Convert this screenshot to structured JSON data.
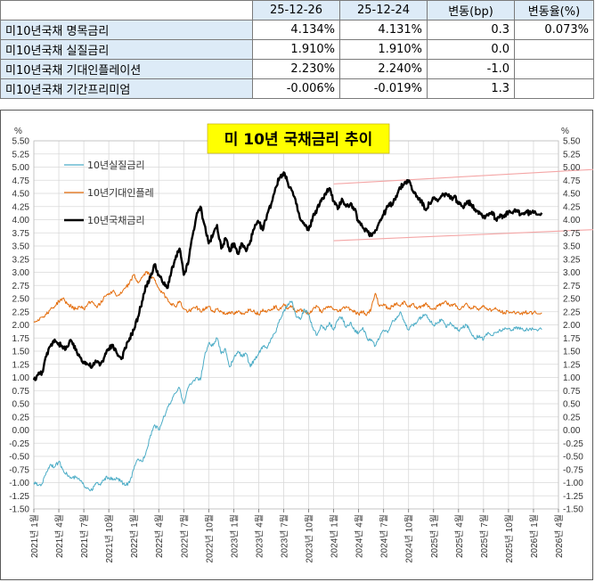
{
  "table": {
    "headers": [
      "",
      "25-12-26",
      "25-12-24",
      "변동(bp)",
      "변동율(%)"
    ],
    "rows": [
      {
        "label": "미10년국채 명목금리",
        "v1": "4.134%",
        "v2": "4.131%",
        "chg": "0.3",
        "pct": "0.073%"
      },
      {
        "label": "미10년국채 실질금리",
        "v1": "1.910%",
        "v2": "1.910%",
        "chg": "0.0",
        "pct": ""
      },
      {
        "label": "미10년국채 기대인플레이션",
        "v1": "2.230%",
        "v2": "2.240%",
        "chg": "-1.0",
        "pct": ""
      },
      {
        "label": "미10년국채 기간프리미엄",
        "v1": "-0.006%",
        "v2": "-0.019%",
        "chg": "1.3",
        "pct": ""
      }
    ]
  },
  "chart_data": {
    "type": "line",
    "title": "미 10년  국채금리  추이",
    "y_unit_label": "%",
    "ylim": [
      -1.5,
      5.5
    ],
    "ytick_step": 0.25,
    "x_ticks": [
      "2021년 1월",
      "2021년 4월",
      "2021년 7월",
      "2021년 10월",
      "2022년 1월",
      "2022년 4월",
      "2022년 7월",
      "2022년 10월",
      "2023년 1월",
      "2023년 4월",
      "2023년 7월",
      "2023년 10월",
      "2024년 1월",
      "2024년 4월",
      "2024년 7월",
      "2024년 10월",
      "2025년 1월",
      "2025년 4월",
      "2025년 7월",
      "2025년 10월",
      "2026년 1월",
      "2026년 4월"
    ],
    "grid": true,
    "legend_position": "top-left",
    "colors": {
      "real": "#4bacc6",
      "breakeven": "#e46c0a",
      "nominal": "#000000",
      "band": "#f4a6a6",
      "title_bg": "#ffff00"
    },
    "series": [
      {
        "key": "real",
        "name": "10년실질금리",
        "x": [
          0,
          0.5,
          1,
          1.5,
          2,
          2.5,
          3,
          3.5,
          4,
          4.5,
          5,
          5.5,
          6,
          6.5,
          7,
          7.5,
          8,
          8.5,
          9,
          9.5,
          10,
          10.5,
          11,
          11.5,
          12,
          12.5,
          13,
          13.5,
          14,
          14.5,
          15,
          15.5,
          16,
          16.5,
          17,
          17.5,
          18,
          18.5,
          19,
          19.5,
          20,
          20.5,
          21,
          21.5,
          22,
          22.5,
          23,
          23.5,
          24,
          24.5,
          25,
          25.5,
          26,
          26.5,
          27,
          27.5,
          28,
          28.5,
          29,
          29.5,
          30,
          30.5,
          31,
          31.5,
          32,
          32.5,
          33,
          33.5,
          34,
          34.5,
          35,
          35.5,
          36,
          36.5,
          37,
          37.5,
          38,
          38.5,
          39,
          39.5,
          40,
          40.5,
          41,
          41.5,
          42,
          42.5,
          43,
          43.5,
          44,
          44.5,
          45,
          45.5,
          46,
          46.5,
          47,
          47.5,
          48,
          48.5,
          49,
          49.5,
          50,
          50.5,
          51,
          51.5,
          52,
          52.5,
          53,
          53.5,
          54,
          54.5,
          55,
          55.5,
          56,
          56.5,
          57,
          57.5,
          58,
          58.5,
          59,
          59.5,
          60,
          61
        ],
        "values": [
          -1.0,
          -1.05,
          -1.02,
          -0.8,
          -0.65,
          -0.7,
          -0.6,
          -0.75,
          -0.85,
          -0.92,
          -0.9,
          -0.95,
          -1.05,
          -1.1,
          -1.15,
          -1.0,
          -1.05,
          -0.92,
          -0.9,
          -0.95,
          -0.92,
          -0.98,
          -1.05,
          -1.0,
          -0.75,
          -0.55,
          -0.6,
          -0.4,
          -0.1,
          0.1,
          0.0,
          0.2,
          0.4,
          0.55,
          0.7,
          0.8,
          0.5,
          0.8,
          0.9,
          1.0,
          0.95,
          1.4,
          1.65,
          1.6,
          1.75,
          1.45,
          1.55,
          1.2,
          1.35,
          1.5,
          1.4,
          1.45,
          1.2,
          1.35,
          1.45,
          1.6,
          1.55,
          1.75,
          1.85,
          2.1,
          2.25,
          2.4,
          2.45,
          2.15,
          2.1,
          2.3,
          2.2,
          1.95,
          1.8,
          2.0,
          1.9,
          2.05,
          1.9,
          2.1,
          2.15,
          1.95,
          2.05,
          1.9,
          1.85,
          1.95,
          1.75,
          1.7,
          1.6,
          1.75,
          1.9,
          1.85,
          2.05,
          2.1,
          2.25,
          2.05,
          1.9,
          2.0,
          2.05,
          2.15,
          2.2,
          2.1,
          2.0,
          2.05,
          2.1,
          1.95,
          2.05,
          1.95,
          1.9,
          1.95,
          2.0,
          1.85,
          1.75,
          1.8,
          1.72,
          1.85,
          1.8,
          1.85,
          1.9,
          1.91,
          1.93,
          1.91,
          1.95,
          1.92,
          1.9,
          1.92,
          1.91,
          1.91
        ]
      },
      {
        "key": "breakeven",
        "name": "10년기대인플레",
        "x": [
          0,
          0.5,
          1,
          1.5,
          2,
          2.5,
          3,
          3.5,
          4,
          4.5,
          5,
          5.5,
          6,
          6.5,
          7,
          7.5,
          8,
          8.5,
          9,
          9.5,
          10,
          10.5,
          11,
          11.5,
          12,
          12.5,
          13,
          13.5,
          14,
          14.5,
          15,
          15.5,
          16,
          16.5,
          17,
          17.5,
          18,
          18.5,
          19,
          19.5,
          20,
          20.5,
          21,
          21.5,
          22,
          22.5,
          23,
          23.5,
          24,
          24.5,
          25,
          25.5,
          26,
          26.5,
          27,
          27.5,
          28,
          28.5,
          29,
          29.5,
          30,
          30.5,
          31,
          31.5,
          32,
          32.5,
          33,
          33.5,
          34,
          34.5,
          35,
          35.5,
          36,
          36.5,
          37,
          37.5,
          38,
          38.5,
          39,
          39.5,
          40,
          40.5,
          41,
          41.5,
          42,
          42.5,
          43,
          43.5,
          44,
          44.5,
          45,
          45.5,
          46,
          46.5,
          47,
          47.5,
          48,
          48.5,
          49,
          49.5,
          50,
          50.5,
          51,
          51.5,
          52,
          52.5,
          53,
          53.5,
          54,
          54.5,
          55,
          55.5,
          56,
          56.5,
          57,
          57.5,
          58,
          58.5,
          59,
          59.5,
          60,
          61
        ],
        "values": [
          2.05,
          2.1,
          2.15,
          2.2,
          2.3,
          2.35,
          2.45,
          2.5,
          2.4,
          2.35,
          2.3,
          2.35,
          2.3,
          2.4,
          2.45,
          2.35,
          2.4,
          2.55,
          2.6,
          2.65,
          2.55,
          2.6,
          2.7,
          2.8,
          2.95,
          2.8,
          2.9,
          3.0,
          2.95,
          2.85,
          2.7,
          2.6,
          2.5,
          2.4,
          2.35,
          2.45,
          2.3,
          2.25,
          2.3,
          2.35,
          2.25,
          2.3,
          2.35,
          2.25,
          2.3,
          2.25,
          2.2,
          2.25,
          2.2,
          2.25,
          2.2,
          2.25,
          2.3,
          2.25,
          2.2,
          2.3,
          2.25,
          2.3,
          2.35,
          2.3,
          2.4,
          2.3,
          2.35,
          2.25,
          2.3,
          2.25,
          2.2,
          2.3,
          2.35,
          2.25,
          2.3,
          2.35,
          2.3,
          2.25,
          2.3,
          2.35,
          2.3,
          2.25,
          2.2,
          2.25,
          2.2,
          2.3,
          2.6,
          2.35,
          2.4,
          2.3,
          2.35,
          2.4,
          2.35,
          2.45,
          2.35,
          2.4,
          2.3,
          2.35,
          2.4,
          2.35,
          2.3,
          2.35,
          2.4,
          2.45,
          2.35,
          2.4,
          2.3,
          2.35,
          2.4,
          2.3,
          2.35,
          2.3,
          2.35,
          2.3,
          2.28,
          2.3,
          2.25,
          2.24,
          2.25,
          2.23,
          2.24,
          2.22,
          2.24,
          2.23,
          2.23,
          2.23
        ]
      },
      {
        "key": "nominal",
        "name": "10년국채금리",
        "x": [
          0,
          0.5,
          1,
          1.5,
          2,
          2.5,
          3,
          3.5,
          4,
          4.5,
          5,
          5.5,
          6,
          6.5,
          7,
          7.5,
          8,
          8.5,
          9,
          9.5,
          10,
          10.5,
          11,
          11.5,
          12,
          12.5,
          13,
          13.5,
          14,
          14.5,
          15,
          15.5,
          16,
          16.5,
          17,
          17.5,
          18,
          18.5,
          19,
          19.5,
          20,
          20.5,
          21,
          21.5,
          22,
          22.5,
          23,
          23.5,
          24,
          24.5,
          25,
          25.5,
          26,
          26.5,
          27,
          27.5,
          28,
          28.5,
          29,
          29.5,
          30,
          30.5,
          31,
          31.5,
          32,
          32.5,
          33,
          33.5,
          34,
          34.5,
          35,
          35.5,
          36,
          36.5,
          37,
          37.5,
          38,
          38.5,
          39,
          39.5,
          40,
          40.5,
          41,
          41.5,
          42,
          42.5,
          43,
          43.5,
          44,
          44.5,
          45,
          45.5,
          46,
          46.5,
          47,
          47.5,
          48,
          48.5,
          49,
          49.5,
          50,
          50.5,
          51,
          51.5,
          52,
          52.5,
          53,
          53.5,
          54,
          54.5,
          55,
          55.5,
          56,
          56.5,
          57,
          57.5,
          58,
          58.5,
          59,
          59.5,
          60,
          61
        ],
        "values": [
          0.95,
          1.05,
          1.1,
          1.4,
          1.6,
          1.72,
          1.65,
          1.55,
          1.58,
          1.7,
          1.52,
          1.4,
          1.3,
          1.25,
          1.2,
          1.3,
          1.25,
          1.4,
          1.55,
          1.62,
          1.45,
          1.35,
          1.55,
          1.75,
          1.9,
          2.15,
          2.45,
          2.75,
          2.9,
          3.15,
          2.95,
          2.8,
          2.7,
          3.0,
          3.25,
          3.45,
          2.95,
          3.15,
          3.65,
          4.05,
          4.25,
          3.9,
          3.55,
          3.7,
          3.9,
          3.45,
          3.65,
          3.4,
          3.55,
          3.35,
          3.55,
          3.4,
          3.6,
          3.85,
          3.95,
          3.8,
          4.1,
          4.3,
          4.6,
          4.8,
          4.9,
          4.7,
          4.55,
          4.3,
          4.0,
          3.9,
          3.8,
          4.05,
          4.2,
          4.35,
          4.5,
          4.6,
          4.35,
          4.2,
          4.4,
          4.25,
          4.3,
          4.2,
          3.95,
          3.85,
          3.8,
          3.7,
          3.8,
          3.95,
          4.1,
          4.25,
          4.3,
          4.45,
          4.6,
          4.7,
          4.75,
          4.55,
          4.45,
          4.35,
          4.2,
          4.3,
          4.4,
          4.35,
          4.45,
          4.5,
          4.4,
          4.45,
          4.3,
          4.25,
          4.35,
          4.3,
          4.2,
          4.15,
          4.05,
          4.1,
          4.15,
          4.0,
          4.1,
          4.05,
          4.15,
          4.12,
          4.18,
          4.1,
          4.14,
          4.13,
          4.13,
          4.13
        ]
      }
    ],
    "trend_bands": [
      {
        "from": [
          36,
          4.68
        ],
        "to": [
          70,
          4.98
        ]
      },
      {
        "from": [
          36,
          3.6
        ],
        "to": [
          70,
          3.83
        ]
      }
    ]
  }
}
